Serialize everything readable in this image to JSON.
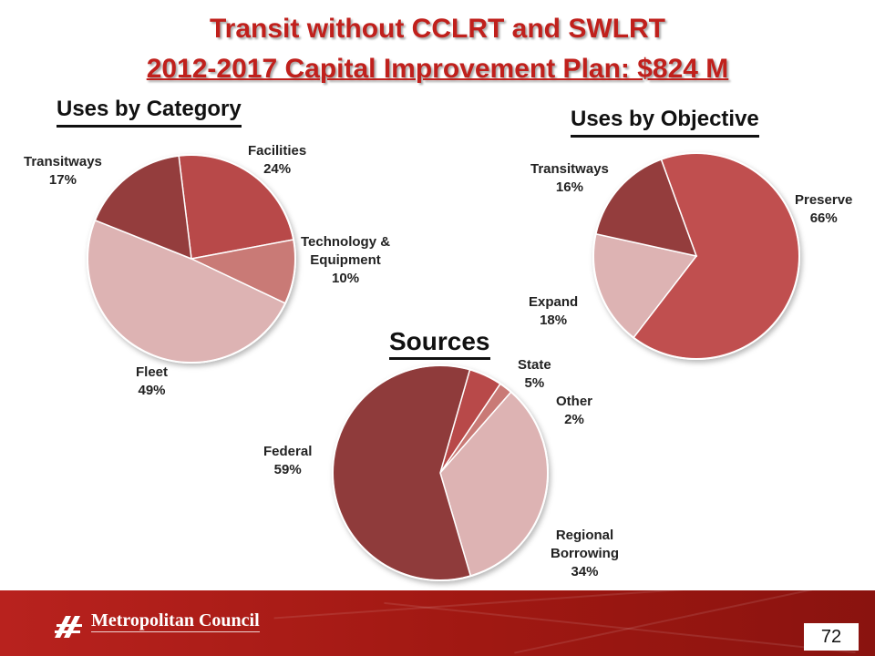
{
  "slide": {
    "title_line1": "Transit without CCLRT and SWLRT",
    "title_line2": "2012-2017 Capital Improvement Plan: $824 M",
    "page_number": "72",
    "org_name": "Metropolitan Council"
  },
  "colors": {
    "title": "#c0201c",
    "footer": "#a01812"
  },
  "chart_data": [
    {
      "type": "pie",
      "title": "Uses by Category",
      "slices": [
        {
          "label": "Facilities",
          "value": 24,
          "pct": "24%",
          "color": "#b84a4a"
        },
        {
          "label": "Technology & Equipment",
          "label_lines": [
            "Technology &",
            "Equipment"
          ],
          "value": 10,
          "pct": "10%",
          "color": "#c97a76"
        },
        {
          "label": "Fleet",
          "value": 49,
          "pct": "49%",
          "color": "#ddb3b3"
        },
        {
          "label": "Transitways",
          "value": 17,
          "pct": "17%",
          "color": "#943c3c"
        }
      ]
    },
    {
      "type": "pie",
      "title": "Uses by Objective",
      "slices": [
        {
          "label": "Preserve",
          "value": 66,
          "pct": "66%",
          "color": "#c05050"
        },
        {
          "label": "Expand",
          "value": 18,
          "pct": "18%",
          "color": "#ddb3b3"
        },
        {
          "label": "Transitways",
          "value": 16,
          "pct": "16%",
          "color": "#943c3c"
        }
      ]
    },
    {
      "type": "pie",
      "title": "Sources",
      "slices": [
        {
          "label": "State",
          "value": 5,
          "pct": "5%",
          "color": "#b84a4a"
        },
        {
          "label": "Other",
          "value": 2,
          "pct": "2%",
          "color": "#c97a76"
        },
        {
          "label": "Regional Borrowing",
          "label_lines": [
            "Regional",
            "Borrowing"
          ],
          "value": 34,
          "pct": "34%",
          "color": "#ddb3b3"
        },
        {
          "label": "Federal",
          "value": 59,
          "pct": "59%",
          "color": "#8f3b3b"
        }
      ]
    }
  ]
}
